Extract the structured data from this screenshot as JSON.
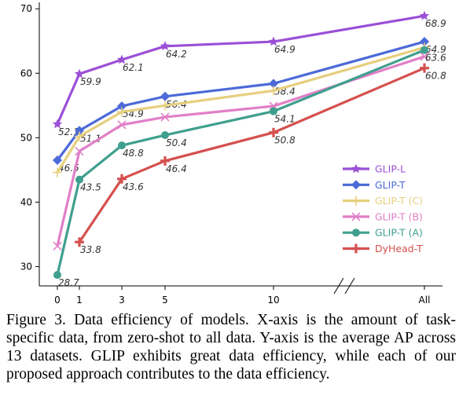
{
  "chart_data": {
    "type": "line",
    "categories": [
      "0",
      "1",
      "3",
      "5",
      "10",
      "All"
    ],
    "ylim": [
      27,
      71
    ],
    "yticks": [
      30,
      40,
      50,
      60,
      70
    ],
    "grid": false,
    "legend_position": "right",
    "axis_break": "between 10 and All",
    "series": [
      {
        "name": "GLIP-L",
        "color": "#9b4fd6",
        "marker": "star",
        "values": [
          52.1,
          59.9,
          62.1,
          64.2,
          64.9,
          68.9
        ],
        "labels": [
          "52.1",
          "59.9",
          "62.1",
          "64.2",
          "64.9",
          "68.9"
        ]
      },
      {
        "name": "GLIP-T",
        "color": "#4c6ad8",
        "marker": "diamond",
        "values": [
          46.5,
          51.1,
          54.9,
          56.4,
          58.4,
          64.9
        ],
        "labels": [
          "46.5",
          "51.1",
          "54.9",
          "56.4",
          "58.4",
          "64.9"
        ]
      },
      {
        "name": "GLIP-T (C)",
        "color": "#e6cf7e",
        "marker": "plus",
        "values": [
          44.6,
          50.2,
          54.0,
          55.0,
          57.3,
          64.0
        ],
        "labels": []
      },
      {
        "name": "GLIP-T (B)",
        "color": "#e17fc7",
        "marker": "x",
        "values": [
          33.2,
          47.9,
          52.0,
          53.2,
          54.9,
          62.6
        ],
        "labels": []
      },
      {
        "name": "GLIP-T (A)",
        "color": "#3f9f8e",
        "marker": "circle",
        "values": [
          28.7,
          43.5,
          48.8,
          50.4,
          54.1,
          63.6
        ],
        "labels": [
          "28.7",
          "43.5",
          "48.8",
          "50.4",
          "54.1",
          "63.6"
        ]
      },
      {
        "name": "DyHead-T",
        "color": "#d4504e",
        "marker": "plus-bold",
        "values": [
          null,
          33.8,
          43.6,
          46.4,
          50.8,
          60.8
        ],
        "labels": [
          "",
          "33.8",
          "43.6",
          "46.4",
          "50.8",
          "60.8"
        ]
      }
    ]
  },
  "caption": "Figure 3. Data efficiency of models. X-axis is the amount of task-specific data, from zero-shot to all data.  Y-axis is the average AP across 13 datasets. GLIP exhibits great data efficiency, while each of our proposed approach contributes to the data efficiency."
}
